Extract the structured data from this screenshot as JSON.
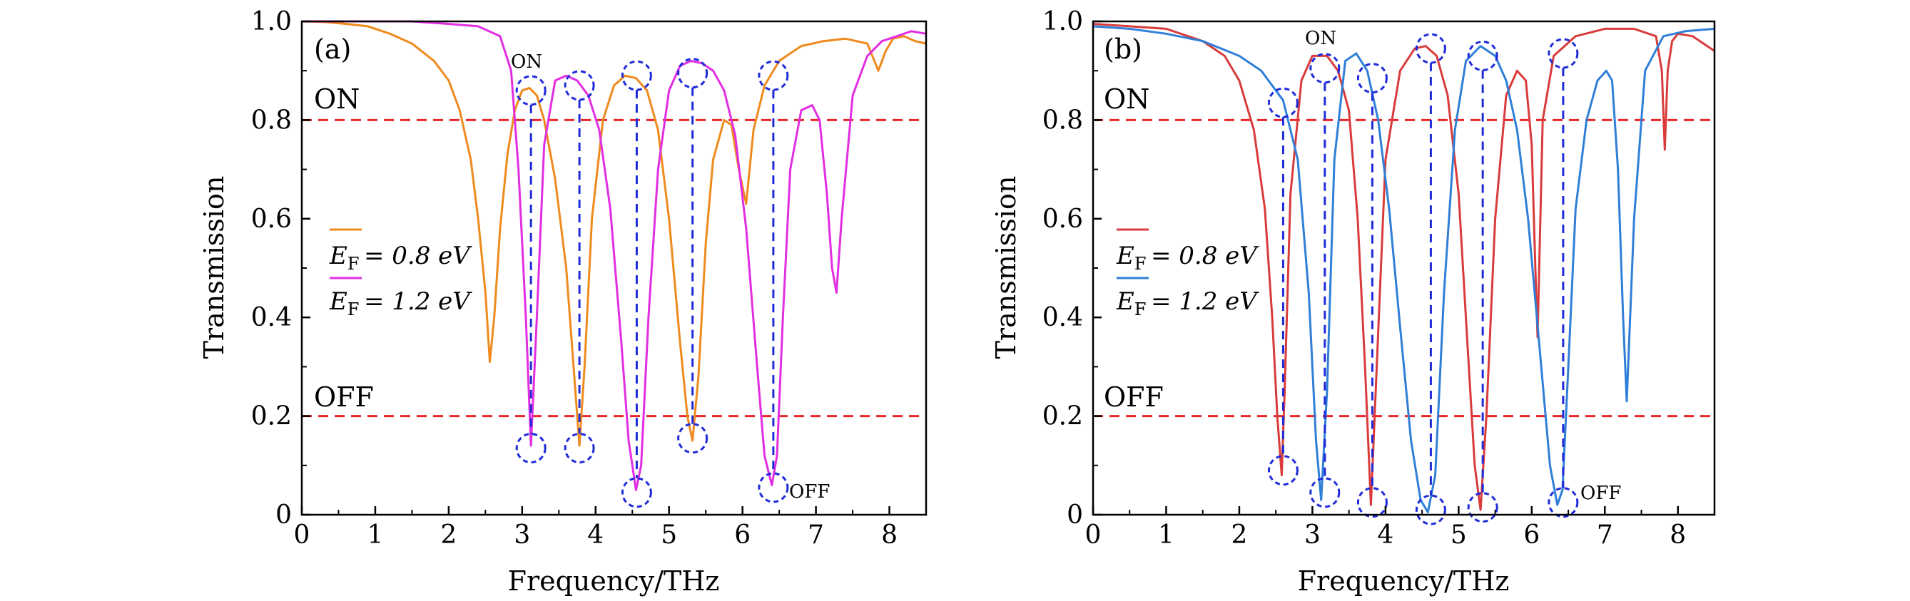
{
  "chart_data": [
    {
      "type": "line",
      "panel_label": "(a)",
      "xlabel": "Frequency/THz",
      "ylabel": "Transmission",
      "xlim": [
        0,
        8.5
      ],
      "ylim": [
        0,
        1.0
      ],
      "xticks": [
        "0",
        "1",
        "2",
        "3",
        "4",
        "5",
        "6",
        "7",
        "8"
      ],
      "yticks": [
        "0",
        "0.2",
        "0.4",
        "0.6",
        "0.8",
        "1.0"
      ],
      "legend_placement": "middle-left",
      "thresholds": [
        {
          "label": "ON",
          "y": 0.8,
          "color": "#e8262a"
        },
        {
          "label": "OFF",
          "y": 0.2,
          "color": "#e8262a"
        }
      ],
      "annotations": {
        "on_label": "ON",
        "off_label": "OFF"
      },
      "series": [
        {
          "name": "E_F = 0.8 eV",
          "legend_text": "= 0.8 eV",
          "color": "#ef8a1e",
          "x": [
            0,
            0.3,
            0.6,
            0.9,
            1.2,
            1.5,
            1.8,
            2.0,
            2.15,
            2.3,
            2.4,
            2.5,
            2.56,
            2.62,
            2.7,
            2.8,
            2.9,
            3.0,
            3.1,
            3.2,
            3.3,
            3.45,
            3.6,
            3.7,
            3.78,
            3.85,
            3.95,
            4.1,
            4.25,
            4.4,
            4.55,
            4.7,
            4.85,
            5.0,
            5.15,
            5.25,
            5.32,
            5.4,
            5.5,
            5.6,
            5.75,
            5.85,
            5.95,
            6.05,
            6.15,
            6.3,
            6.5,
            6.8,
            7.1,
            7.4,
            7.7,
            7.85,
            7.95,
            8.05,
            8.2,
            8.35,
            8.5
          ],
          "y": [
            1.0,
            0.999,
            0.995,
            0.99,
            0.975,
            0.955,
            0.92,
            0.88,
            0.82,
            0.72,
            0.6,
            0.45,
            0.31,
            0.4,
            0.58,
            0.73,
            0.82,
            0.86,
            0.865,
            0.85,
            0.8,
            0.68,
            0.5,
            0.3,
            0.14,
            0.3,
            0.6,
            0.8,
            0.87,
            0.89,
            0.885,
            0.86,
            0.78,
            0.6,
            0.35,
            0.2,
            0.15,
            0.28,
            0.55,
            0.72,
            0.8,
            0.79,
            0.7,
            0.63,
            0.78,
            0.87,
            0.92,
            0.95,
            0.96,
            0.965,
            0.955,
            0.9,
            0.94,
            0.965,
            0.97,
            0.96,
            0.955
          ]
        },
        {
          "name": "E_F = 1.2 eV",
          "legend_text": "= 1.2 eV",
          "color": "#e22ee2",
          "x": [
            0,
            0.5,
            1.0,
            1.5,
            2.0,
            2.4,
            2.7,
            2.85,
            2.95,
            3.05,
            3.12,
            3.2,
            3.3,
            3.45,
            3.6,
            3.75,
            3.9,
            4.05,
            4.2,
            4.35,
            4.45,
            4.55,
            4.62,
            4.72,
            4.85,
            5.0,
            5.15,
            5.3,
            5.45,
            5.6,
            5.75,
            5.9,
            6.05,
            6.2,
            6.3,
            6.4,
            6.47,
            6.55,
            6.65,
            6.8,
            6.95,
            7.05,
            7.15,
            7.22,
            7.28,
            7.35,
            7.5,
            7.7,
            7.9,
            8.1,
            8.3,
            8.5
          ],
          "y": [
            1.0,
            1.0,
            1.0,
            1.0,
            0.995,
            0.99,
            0.97,
            0.9,
            0.7,
            0.4,
            0.14,
            0.4,
            0.75,
            0.88,
            0.89,
            0.88,
            0.85,
            0.78,
            0.62,
            0.35,
            0.15,
            0.05,
            0.1,
            0.4,
            0.7,
            0.86,
            0.91,
            0.92,
            0.915,
            0.9,
            0.86,
            0.77,
            0.58,
            0.3,
            0.12,
            0.06,
            0.12,
            0.4,
            0.7,
            0.82,
            0.83,
            0.8,
            0.65,
            0.5,
            0.45,
            0.6,
            0.85,
            0.93,
            0.96,
            0.97,
            0.98,
            0.975
          ]
        }
      ]
    },
    {
      "type": "line",
      "panel_label": "(b)",
      "xlabel": "Frequency/THz",
      "ylabel": "Transmission",
      "xlim": [
        0,
        8.5
      ],
      "ylim": [
        0,
        1.0
      ],
      "xticks": [
        "0",
        "1",
        "2",
        "3",
        "4",
        "5",
        "6",
        "7",
        "8"
      ],
      "yticks": [
        "0",
        "0.2",
        "0.4",
        "0.6",
        "0.8",
        "1.0"
      ],
      "legend_placement": "middle-left",
      "thresholds": [
        {
          "label": "ON",
          "y": 0.8,
          "color": "#e8262a"
        },
        {
          "label": "OFF",
          "y": 0.2,
          "color": "#e8262a"
        }
      ],
      "annotations": {
        "on_label": "ON",
        "off_label": "OFF"
      },
      "series": [
        {
          "name": "E_F = 0.8 eV",
          "legend_text": "= 0.8 eV",
          "color": "#d93b3b",
          "x": [
            0,
            0.5,
            1.0,
            1.5,
            1.8,
            2.0,
            2.2,
            2.35,
            2.45,
            2.52,
            2.58,
            2.62,
            2.7,
            2.85,
            3.0,
            3.2,
            3.35,
            3.5,
            3.62,
            3.72,
            3.8,
            3.88,
            4.0,
            4.2,
            4.4,
            4.55,
            4.7,
            4.85,
            5.0,
            5.12,
            5.22,
            5.3,
            5.38,
            5.5,
            5.65,
            5.8,
            5.92,
            6.0,
            6.05,
            6.08,
            6.15,
            6.3,
            6.6,
            7.0,
            7.4,
            7.7,
            7.78,
            7.82,
            7.86,
            7.92,
            8.0,
            8.2,
            8.35,
            8.5
          ],
          "y": [
            0.995,
            0.99,
            0.985,
            0.96,
            0.93,
            0.88,
            0.78,
            0.62,
            0.4,
            0.2,
            0.08,
            0.25,
            0.65,
            0.88,
            0.93,
            0.93,
            0.9,
            0.82,
            0.6,
            0.3,
            0.02,
            0.3,
            0.72,
            0.9,
            0.945,
            0.95,
            0.93,
            0.85,
            0.65,
            0.35,
            0.1,
            0.01,
            0.2,
            0.6,
            0.85,
            0.9,
            0.88,
            0.75,
            0.5,
            0.36,
            0.8,
            0.93,
            0.97,
            0.985,
            0.985,
            0.97,
            0.9,
            0.74,
            0.9,
            0.96,
            0.975,
            0.97,
            0.955,
            0.94
          ]
        },
        {
          "name": "E_F = 1.2 eV",
          "legend_text": "= 1.2 eV",
          "color": "#2f7fd8",
          "x": [
            0,
            0.5,
            1.0,
            1.5,
            2.0,
            2.3,
            2.6,
            2.8,
            2.95,
            3.05,
            3.12,
            3.2,
            3.3,
            3.45,
            3.6,
            3.75,
            3.9,
            4.05,
            4.2,
            4.35,
            4.48,
            4.58,
            4.68,
            4.8,
            4.95,
            5.1,
            5.3,
            5.5,
            5.65,
            5.8,
            5.95,
            6.1,
            6.25,
            6.35,
            6.42,
            6.5,
            6.6,
            6.75,
            6.9,
            7.02,
            7.1,
            7.18,
            7.25,
            7.3,
            7.4,
            7.55,
            7.8,
            8.1,
            8.5
          ],
          "y": [
            0.99,
            0.985,
            0.975,
            0.96,
            0.93,
            0.9,
            0.84,
            0.72,
            0.45,
            0.15,
            0.03,
            0.25,
            0.72,
            0.92,
            0.935,
            0.9,
            0.8,
            0.62,
            0.38,
            0.15,
            0.03,
            0.005,
            0.08,
            0.45,
            0.78,
            0.92,
            0.95,
            0.93,
            0.88,
            0.78,
            0.6,
            0.35,
            0.1,
            0.02,
            0.05,
            0.3,
            0.62,
            0.8,
            0.88,
            0.9,
            0.88,
            0.7,
            0.4,
            0.23,
            0.6,
            0.9,
            0.97,
            0.98,
            0.985
          ]
        }
      ]
    }
  ]
}
